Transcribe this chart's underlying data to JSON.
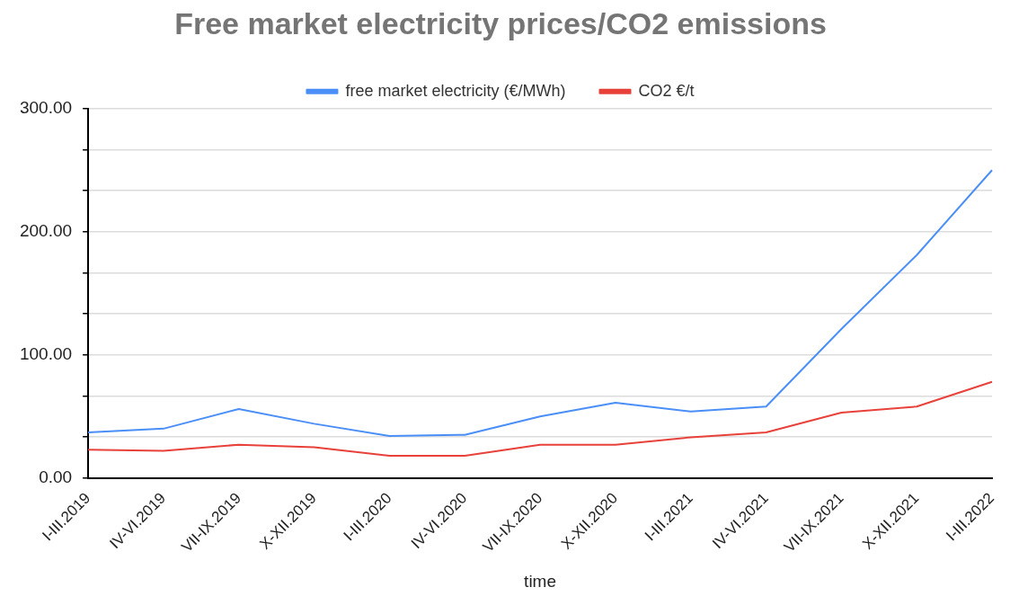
{
  "chart_data": {
    "type": "line",
    "title": "Free market electricity prices/CO2 emissions",
    "xlabel": "time",
    "categories": [
      "I-III.2019",
      "IV-VI.2019",
      "VII-IX.2019",
      "X-XII.2019",
      "I-III.2020",
      "IV-VI.2020",
      "VII-IX.2020",
      "X-XII.2020",
      "I-III.2021",
      "IV-VI.2021",
      "VII-IX.2021",
      "X-XII.2021",
      "I-III.2022"
    ],
    "series": [
      {
        "name": "free market electricity (€/MWh)",
        "color": "#4a8ff7",
        "values": [
          37,
          40,
          56,
          44,
          34,
          35,
          50,
          61,
          54,
          58,
          121,
          181,
          250
        ]
      },
      {
        "name": "CO2 €/t",
        "color": "#e8413a",
        "values": [
          23,
          22,
          27,
          25,
          18,
          18,
          27,
          27,
          33,
          37,
          53,
          58,
          78
        ]
      }
    ],
    "ylim": [
      0,
      300
    ],
    "yticks": [
      {
        "value": 0,
        "label": "0.00"
      },
      {
        "value": 33.33,
        "label": null
      },
      {
        "value": 66.67,
        "label": null
      },
      {
        "value": 100,
        "label": "100.00"
      },
      {
        "value": 133.33,
        "label": null
      },
      {
        "value": 166.67,
        "label": null
      },
      {
        "value": 200,
        "label": "200.00"
      },
      {
        "value": 233.33,
        "label": null
      },
      {
        "value": 266.67,
        "label": null
      },
      {
        "value": 300,
        "label": "300.00"
      }
    ],
    "grid": "y",
    "legend": "top",
    "marker": "none",
    "line_style": "solid"
  }
}
